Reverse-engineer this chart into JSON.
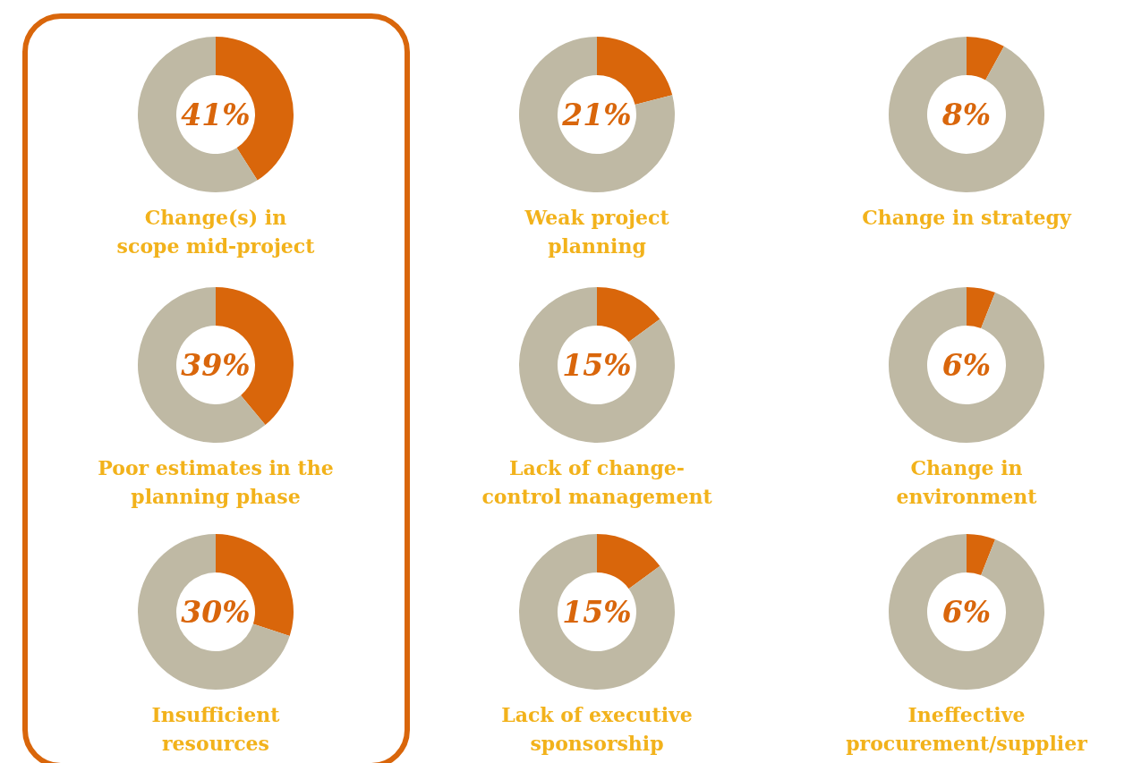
{
  "chart_data": [
    {
      "type": "donut",
      "title": "Change(s) in\nscope mid-project",
      "categories": [
        null,
        null
      ],
      "values": [
        41,
        59
      ],
      "colors": [
        "#d9660b",
        "#bfb9a4"
      ],
      "annotations": [
        "41%"
      ]
    },
    {
      "type": "donut",
      "title": "Weak project\nplanning",
      "categories": [
        null,
        null
      ],
      "values": [
        21,
        79
      ],
      "colors": [
        "#d9660b",
        "#bfb9a4"
      ],
      "annotations": [
        "21%"
      ]
    },
    {
      "type": "donut",
      "title": "Change in strategy",
      "categories": [
        null,
        null
      ],
      "values": [
        8,
        92
      ],
      "colors": [
        "#d9660b",
        "#bfb9a4"
      ],
      "annotations": [
        "8%"
      ]
    },
    {
      "type": "donut",
      "title": "Poor estimates in the\nplanning phase",
      "categories": [
        null,
        null
      ],
      "values": [
        39,
        61
      ],
      "colors": [
        "#d9660b",
        "#bfb9a4"
      ],
      "annotations": [
        "39%"
      ]
    },
    {
      "type": "donut",
      "title": "Lack of change-\ncontrol management",
      "categories": [
        null,
        null
      ],
      "values": [
        15,
        85
      ],
      "colors": [
        "#d9660b",
        "#bfb9a4"
      ],
      "annotations": [
        "15%"
      ]
    },
    {
      "type": "donut",
      "title": "Change in\nenvironment",
      "categories": [
        null,
        null
      ],
      "values": [
        6,
        94
      ],
      "colors": [
        "#d9660b",
        "#bfb9a4"
      ],
      "annotations": [
        "6%"
      ]
    },
    {
      "type": "donut",
      "title": "Insufficient\nresources",
      "categories": [
        null,
        null
      ],
      "values": [
        30,
        70
      ],
      "colors": [
        "#d9660b",
        "#bfb9a4"
      ],
      "annotations": [
        "30%"
      ]
    },
    {
      "type": "donut",
      "title": "Lack of executive\nsponsorship",
      "categories": [
        null,
        null
      ],
      "values": [
        15,
        85
      ],
      "colors": [
        "#d9660b",
        "#bfb9a4"
      ],
      "annotations": [
        "15%"
      ]
    },
    {
      "type": "donut",
      "title": "Ineffective\nprocurement/supplier",
      "categories": [
        null,
        null
      ],
      "values": [
        6,
        94
      ],
      "colors": [
        "#d9660b",
        "#bfb9a4"
      ],
      "annotations": [
        "6%"
      ]
    }
  ]
}
